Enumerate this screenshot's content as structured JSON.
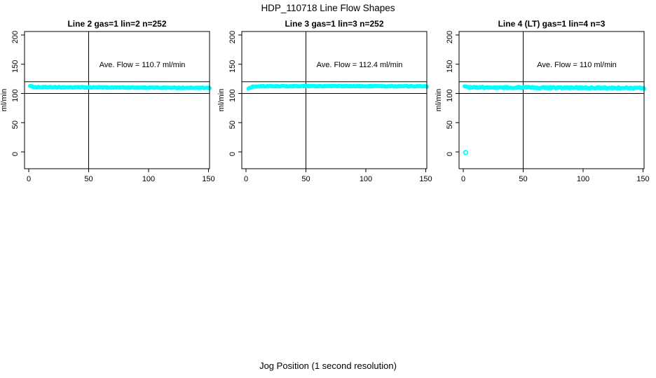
{
  "title": "HDP_110718  Line Flow Shapes",
  "xlabel": "Jog Position (1 second resolution)",
  "background": "#ffffff",
  "axis_color": "#000000",
  "point_color": "#00ffff",
  "chart_data": [
    {
      "type": "scatter",
      "title": "Line 2 gas=1 lin=2 n=252",
      "ylabel": "ml/min",
      "xticks": [
        0,
        50,
        100,
        150
      ],
      "yticks": [
        0,
        50,
        100,
        150,
        200
      ],
      "xlim": [
        -5,
        152
      ],
      "ylim": [
        -29,
        206
      ],
      "n": 252,
      "ave_flow": 110.7,
      "annotation": "Ave. Flow =  110.7  ml/min",
      "reference_lines": {
        "vertical_x": 50,
        "horizontal_y": [
          120,
          100
        ]
      },
      "band_x_range": [
        1,
        151
      ],
      "band_profile": [
        [
          1,
          113.5
        ],
        [
          2,
          112
        ],
        [
          5,
          110.9
        ],
        [
          30,
          110.6
        ],
        [
          90,
          110.1
        ],
        [
          151,
          109.4
        ]
      ],
      "outliers": [],
      "jitter": 0.8
    },
    {
      "type": "scatter",
      "title": "Line 3 gas=1 lin=3 n=252",
      "ylabel": "ml/min",
      "xticks": [
        0,
        50,
        100,
        150
      ],
      "yticks": [
        0,
        50,
        100,
        150,
        200
      ],
      "xlim": [
        -5,
        152
      ],
      "ylim": [
        -29,
        206
      ],
      "n": 252,
      "ave_flow": 112.4,
      "annotation": "Ave. Flow =  112.4  ml/min",
      "reference_lines": {
        "vertical_x": 50,
        "horizontal_y": [
          120,
          100
        ]
      },
      "band_x_range": [
        2,
        151
      ],
      "band_profile": [
        [
          2,
          107.5
        ],
        [
          3,
          109.5
        ],
        [
          6,
          111.8
        ],
        [
          15,
          112.4
        ],
        [
          80,
          112.6
        ],
        [
          151,
          112.3
        ]
      ],
      "outliers": [],
      "jitter": 0.7
    },
    {
      "type": "scatter",
      "title": "Line 4 (LT) gas=1 lin=4 n=3",
      "ylabel": "ml/min",
      "xticks": [
        0,
        50,
        100,
        150
      ],
      "yticks": [
        0,
        50,
        100,
        150,
        200
      ],
      "xlim": [
        -5,
        152
      ],
      "ylim": [
        -29,
        206
      ],
      "n": 3,
      "ave_flow": 110,
      "annotation": "Ave. Flow =  110  ml/min",
      "reference_lines": {
        "vertical_x": 50,
        "horizontal_y": [
          120,
          100
        ]
      },
      "band_x_range": [
        1,
        151
      ],
      "band_profile": [
        [
          1,
          112.5
        ],
        [
          2,
          111
        ],
        [
          5,
          110.3
        ],
        [
          60,
          110
        ],
        [
          151,
          109.2
        ]
      ],
      "outliers": [
        [
          2,
          -1
        ]
      ],
      "jitter": 1.3
    }
  ]
}
